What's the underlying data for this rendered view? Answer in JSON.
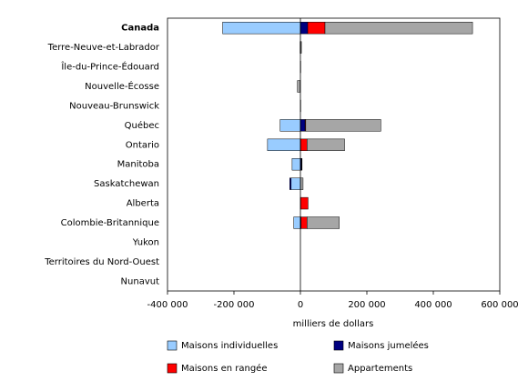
{
  "chart_data": {
    "type": "stacked-bar-horizontal",
    "xlabel": "milliers de dollars",
    "categories": [
      "Canada",
      "Terre-Neuve-et-Labrador",
      "Île-du-Prince-Édouard",
      "Nouvelle-Écosse",
      "Nouveau-Brunswick",
      "Québec",
      "Ontario",
      "Manitoba",
      "Saskatchewan",
      "Alberta",
      "Colombie-Britannique",
      "Yukon",
      "Territoires du Nord-Ouest",
      "Nunavut"
    ],
    "series": [
      {
        "name": "Maisons individuelles",
        "color": "#99ccff",
        "values": [
          -234000,
          -1000,
          0,
          -1000,
          0,
          -61000,
          -99000,
          -25000,
          -28000,
          0,
          -20000,
          0,
          0,
          0
        ]
      },
      {
        "name": "Maisons jumelées",
        "color": "#000080",
        "values": [
          22000,
          1000,
          0,
          0,
          0,
          14000,
          1000,
          3000,
          -4000,
          1000,
          2000,
          0,
          0,
          0
        ]
      },
      {
        "name": "Maisons en rangée",
        "color": "#ff0000",
        "values": [
          52000,
          0,
          0,
          0,
          0,
          2000,
          19000,
          1000,
          0,
          22000,
          18000,
          0,
          0,
          0
        ]
      },
      {
        "name": "Appartements",
        "color": "#a6a6a6",
        "values": [
          444000,
          2000,
          1000,
          -8000,
          1000,
          226000,
          113000,
          1000,
          8000,
          0,
          97000,
          0,
          0,
          0
        ]
      }
    ],
    "xlim": [
      -400000,
      600000
    ],
    "xticks": [
      {
        "value": -400000,
        "label": "-400 000"
      },
      {
        "value": -200000,
        "label": "-200 000"
      },
      0,
      {
        "value": 200000,
        "label": "200 000"
      },
      {
        "value": 400000,
        "label": "400 000"
      },
      {
        "value": 600000,
        "label": "600 000"
      }
    ]
  }
}
